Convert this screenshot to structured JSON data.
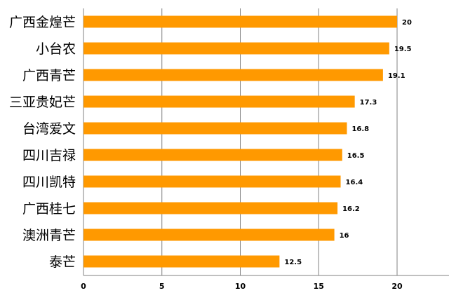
{
  "chart_data": {
    "type": "bar",
    "orientation": "horizontal",
    "title": "",
    "xlabel": "",
    "ylabel": "",
    "categories": [
      "广西金煌芒",
      "小台农",
      "广西青芒",
      "三亚贵妃芒",
      "台湾爱文",
      "四川吉禄",
      "四川凯特",
      "广西桂七",
      "澳洲青芒",
      "泰芒"
    ],
    "values": [
      20,
      19.5,
      19.1,
      17.3,
      16.8,
      16.5,
      16.4,
      16.2,
      16,
      12.5
    ],
    "value_labels": [
      "20",
      "19.5",
      "19.1",
      "17.3",
      "16.8",
      "16.5",
      "16.4",
      "16.2",
      "16",
      "12.5"
    ],
    "xlim": [
      0,
      20
    ],
    "x_ticks": [
      0,
      5,
      10,
      15,
      20
    ],
    "x_tick_labels": [
      "0",
      "5",
      "10",
      "15",
      "20"
    ],
    "grid": true,
    "legend": "none",
    "bar_color": "#FF9900",
    "grid_color": "#808080"
  }
}
